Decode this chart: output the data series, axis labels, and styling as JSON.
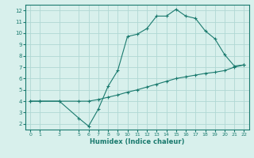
{
  "xlabel": "Humidex (Indice chaleur)",
  "background_color": "#d8f0ec",
  "grid_color": "#b0d8d4",
  "line_color": "#1a7a6e",
  "x_main": [
    0,
    1,
    3,
    5,
    6,
    7,
    8,
    9,
    10,
    11,
    12,
    13,
    14,
    15,
    16,
    17,
    18,
    19,
    20,
    21,
    22
  ],
  "y_main": [
    4.0,
    4.0,
    4.0,
    2.5,
    1.8,
    3.3,
    5.3,
    6.7,
    9.7,
    9.9,
    10.4,
    11.5,
    11.5,
    12.1,
    11.5,
    11.3,
    10.2,
    9.5,
    8.1,
    7.1,
    7.2
  ],
  "x_flat": [
    0,
    1,
    3,
    5,
    6,
    7,
    8,
    9,
    10,
    11,
    12,
    13,
    14,
    15,
    16,
    17,
    18,
    19,
    20,
    21,
    22
  ],
  "y_flat": [
    4.0,
    4.0,
    4.0,
    4.0,
    4.0,
    4.15,
    4.35,
    4.55,
    4.8,
    5.0,
    5.25,
    5.5,
    5.75,
    6.0,
    6.15,
    6.3,
    6.45,
    6.55,
    6.7,
    7.0,
    7.2
  ],
  "xlim": [
    -0.5,
    22.5
  ],
  "ylim": [
    1.5,
    12.5
  ],
  "yticks": [
    2,
    3,
    4,
    5,
    6,
    7,
    8,
    9,
    10,
    11,
    12
  ],
  "xticks": [
    0,
    1,
    3,
    5,
    6,
    7,
    8,
    9,
    10,
    11,
    12,
    13,
    14,
    15,
    16,
    17,
    18,
    19,
    20,
    21,
    22
  ]
}
